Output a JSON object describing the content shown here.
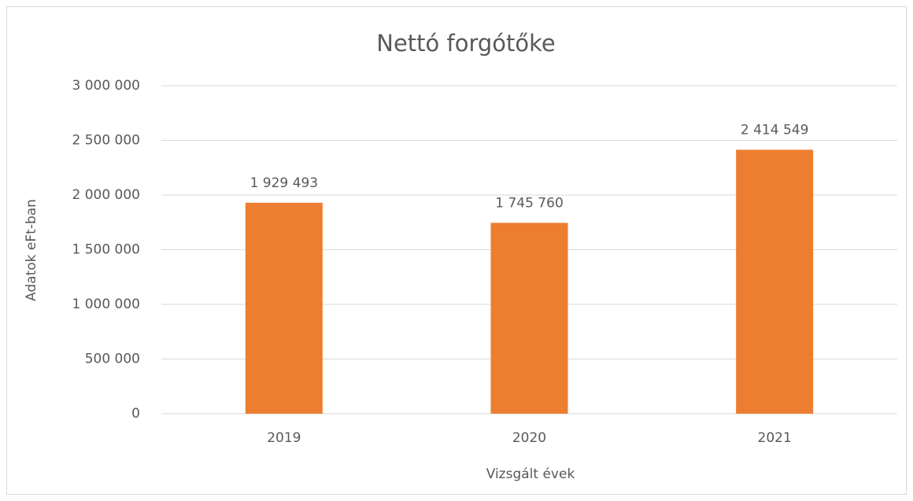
{
  "chart_data": {
    "type": "bar",
    "title": "Nettó forgótőke",
    "x_label": "Vizsgált évek",
    "y_label": "Adatok eFt-ban",
    "categories": [
      "2019",
      "2020",
      "2021"
    ],
    "values": [
      1929493,
      1745760,
      2414549
    ],
    "value_labels": [
      "1 929 493",
      "1 745 760",
      "2 414 549"
    ],
    "color": "#ed7d31",
    "ylim": [
      0,
      3000000
    ],
    "yticks": [
      0,
      {
        "value": 500000,
        "label": "500 000"
      },
      {
        "value": 1000000,
        "label": "1 000 000"
      },
      {
        "value": 1500000,
        "label": "1 500 000"
      },
      {
        "value": 2000000,
        "label": "2 000 000"
      },
      {
        "value": 2500000,
        "label": "2 500 000"
      },
      {
        "value": 3000000,
        "label": "3 000 000"
      }
    ],
    "grid": true
  }
}
